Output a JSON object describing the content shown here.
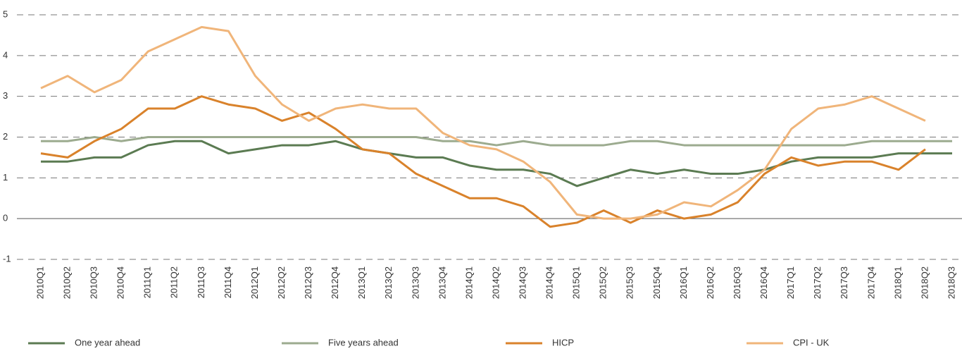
{
  "chart_data": {
    "type": "line",
    "categories": [
      "2010Q1",
      "2010Q2",
      "2010Q3",
      "2010Q4",
      "2011Q1",
      "2011Q2",
      "2011Q3",
      "2011Q4",
      "2012Q1",
      "2012Q2",
      "2012Q3",
      "2012Q4",
      "2013Q1",
      "2013Q2",
      "2013Q3",
      "2013Q4",
      "2014Q1",
      "2014Q2",
      "2014Q3",
      "2014Q4",
      "2015Q1",
      "2015Q2",
      "2015Q3",
      "2015Q4",
      "2016Q1",
      "2016Q2",
      "2016Q3",
      "2016Q4",
      "2017Q1",
      "2017Q2",
      "2017Q3",
      "2017Q4",
      "2018Q1",
      "2018Q2",
      "2018Q3"
    ],
    "series": [
      {
        "name": "One year ahead",
        "color": "#5b7b52",
        "values": [
          1.4,
          1.4,
          1.5,
          1.5,
          1.8,
          1.9,
          1.9,
          1.6,
          1.7,
          1.8,
          1.8,
          1.9,
          1.7,
          1.6,
          1.5,
          1.5,
          1.3,
          1.2,
          1.2,
          1.1,
          0.8,
          1.0,
          1.2,
          1.1,
          1.2,
          1.1,
          1.1,
          1.2,
          1.4,
          1.5,
          1.5,
          1.5,
          1.6,
          1.6,
          1.6
        ]
      },
      {
        "name": "Five years ahead",
        "color": "#9cab8f",
        "values": [
          1.9,
          1.9,
          2.0,
          1.9,
          2.0,
          2.0,
          2.0,
          2.0,
          2.0,
          2.0,
          2.0,
          2.0,
          2.0,
          2.0,
          2.0,
          1.9,
          1.9,
          1.8,
          1.9,
          1.8,
          1.8,
          1.8,
          1.9,
          1.9,
          1.8,
          1.8,
          1.8,
          1.8,
          1.8,
          1.8,
          1.8,
          1.9,
          1.9,
          1.9,
          1.9
        ]
      },
      {
        "name": "HICP",
        "color": "#d9822b",
        "values": [
          1.6,
          1.5,
          1.9,
          2.2,
          2.7,
          2.7,
          3.0,
          2.8,
          2.7,
          2.4,
          2.6,
          2.2,
          1.7,
          1.6,
          1.1,
          0.8,
          0.5,
          0.5,
          0.3,
          -0.2,
          -0.1,
          0.2,
          -0.1,
          0.2,
          0.0,
          0.1,
          0.4,
          1.1,
          1.5,
          1.3,
          1.4,
          1.4,
          1.2,
          1.7,
          null
        ]
      },
      {
        "name": "CPI - UK",
        "color": "#f0b57a",
        "values": [
          3.2,
          3.5,
          3.1,
          3.4,
          4.1,
          4.4,
          4.7,
          4.6,
          3.5,
          2.8,
          2.4,
          2.7,
          2.8,
          2.7,
          2.7,
          2.1,
          1.8,
          1.7,
          1.4,
          0.9,
          0.1,
          0.0,
          0.0,
          0.1,
          0.4,
          0.3,
          0.7,
          1.2,
          2.2,
          2.7,
          2.8,
          3.0,
          2.7,
          2.4,
          null
        ]
      }
    ],
    "ylim": [
      -1,
      5
    ],
    "yticks": [
      -1,
      0,
      1,
      2,
      3,
      4,
      5
    ],
    "grid": true,
    "legend": "bottom"
  }
}
